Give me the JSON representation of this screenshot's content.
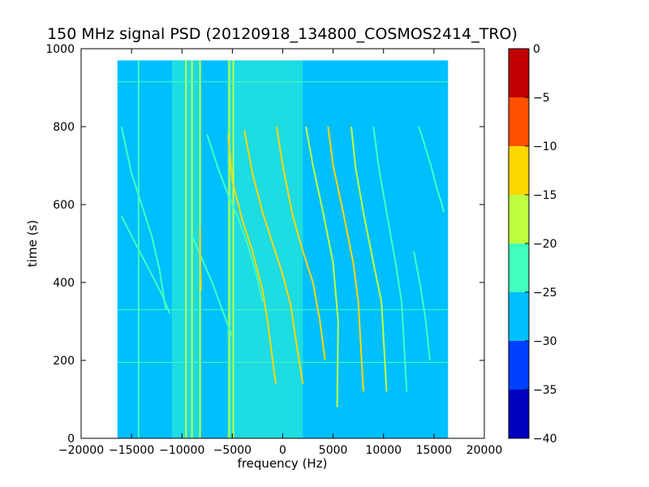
{
  "chart_data": {
    "type": "heatmap",
    "title": "150 MHz signal PSD (20120918_134800_COSMOS2414_TRO)",
    "xlabel": "frequency (Hz)",
    "ylabel": "time (s)",
    "xlim": [
      -20000,
      20000
    ],
    "ylim": [
      0,
      1000
    ],
    "x_ticks": [
      -20000,
      -15000,
      -10000,
      -5000,
      0,
      5000,
      10000,
      15000,
      20000
    ],
    "x_tick_labels": [
      "−20000",
      "−15000",
      "−10000",
      "−5000",
      "0",
      "5000",
      "10000",
      "15000",
      "20000"
    ],
    "y_ticks": [
      0,
      200,
      400,
      600,
      800,
      1000
    ],
    "y_tick_labels": [
      "0",
      "200",
      "400",
      "600",
      "800",
      "1000"
    ],
    "data_extent": {
      "x": [
        -16400,
        16400
      ],
      "y": [
        0,
        970
      ]
    },
    "background_level_db": -27.5,
    "grid": false,
    "colorbar": {
      "levels": [
        -40,
        -35,
        -30,
        -25,
        -20,
        -15,
        -10,
        -5,
        0
      ],
      "tick_labels": [
        "−40",
        "−35",
        "−30",
        "−25",
        "−20",
        "−15",
        "−10",
        "−5",
        "0"
      ],
      "colors": [
        "#0000bf",
        "#0040ff",
        "#00bfff",
        "#40ffbf",
        "#bfff40",
        "#ffd700",
        "#ff5000",
        "#c00000"
      ]
    },
    "vertical_bands": [
      {
        "x_from": -11000,
        "x_to": -8200,
        "level_db": -22.5
      },
      {
        "x_from": -5500,
        "x_to": 2000,
        "level_db": -22.5
      }
    ],
    "vertical_lines": [
      {
        "x": -14300,
        "level_db": -22.5
      },
      {
        "x": -9600,
        "level_db": -17.5
      },
      {
        "x": -9000,
        "level_db": -17.5
      },
      {
        "x": -8200,
        "level_db": -17.5
      },
      {
        "x": -5300,
        "level_db": -17.5
      },
      {
        "x": -4900,
        "level_db": -17.5
      }
    ],
    "horizontal_lines": [
      {
        "y": 915,
        "level_db": -22.5
      },
      {
        "y": 330,
        "level_db": -22.5
      },
      {
        "y": 195,
        "level_db": -22.5
      }
    ],
    "series": [
      {
        "x": [
          -16000,
          -15500,
          -15000,
          -14000,
          -13000,
          -12200,
          -11600
        ],
        "y": [
          800,
          740,
          680,
          600,
          520,
          430,
          330
        ],
        "level_db": -22.5
      },
      {
        "x": [
          -16000,
          -15000,
          -14000,
          -13000,
          -12000,
          -11200
        ],
        "y": [
          570,
          520,
          470,
          420,
          370,
          320
        ],
        "level_db": -22.5
      },
      {
        "x": [
          -7500,
          -6500,
          -5500,
          -4500,
          -3500,
          -2600,
          -2000
        ],
        "y": [
          780,
          700,
          630,
          570,
          500,
          420,
          350
        ],
        "level_db": -22.5
      },
      {
        "x": [
          -9000,
          -8000,
          -7000,
          -6000,
          -5000
        ],
        "y": [
          520,
          460,
          400,
          330,
          260
        ],
        "level_db": -22.5
      },
      {
        "x": [
          -8200,
          -8200,
          -8100
        ],
        "y": [
          540,
          470,
          380
        ],
        "level_db": -12.5
      },
      {
        "x": [
          -5400,
          -5000,
          -4000,
          -3000,
          -2000,
          -1500,
          -1000,
          -700
        ],
        "y": [
          780,
          660,
          560,
          480,
          380,
          300,
          200,
          140
        ],
        "level_db": -12.5
      },
      {
        "x": [
          -3800,
          -3000,
          -2000,
          -1000,
          0,
          800,
          1500,
          2000
        ],
        "y": [
          790,
          680,
          580,
          500,
          420,
          340,
          220,
          140
        ],
        "level_db": -12.5
      },
      {
        "x": [
          -600,
          0,
          1000,
          2000,
          3000,
          3700,
          4200
        ],
        "y": [
          800,
          700,
          570,
          480,
          400,
          300,
          200
        ],
        "level_db": -12.5
      },
      {
        "x": [
          2300,
          3000,
          4000,
          5000,
          5500,
          5400
        ],
        "y": [
          800,
          700,
          580,
          450,
          300,
          80
        ],
        "level_db": -17.5
      },
      {
        "x": [
          4500,
          5000,
          6000,
          7000,
          7500,
          8000
        ],
        "y": [
          800,
          700,
          580,
          450,
          350,
          120
        ],
        "level_db": -12.5
      },
      {
        "x": [
          6800,
          7200,
          8000,
          9000,
          9800,
          10300
        ],
        "y": [
          800,
          700,
          580,
          450,
          350,
          120
        ],
        "level_db": -17.5
      },
      {
        "x": [
          9000,
          9500,
          10300,
          11200,
          11800,
          12300
        ],
        "y": [
          800,
          700,
          580,
          450,
          350,
          120
        ],
        "level_db": -22.5
      },
      {
        "x": [
          13500,
          14000,
          14700,
          15300,
          15800,
          16000
        ],
        "y": [
          800,
          760,
          700,
          640,
          600,
          580
        ],
        "level_db": -22.5
      },
      {
        "x": [
          13000,
          13600,
          14200,
          14600
        ],
        "y": [
          480,
          400,
          300,
          200
        ],
        "level_db": -22.5
      }
    ]
  }
}
